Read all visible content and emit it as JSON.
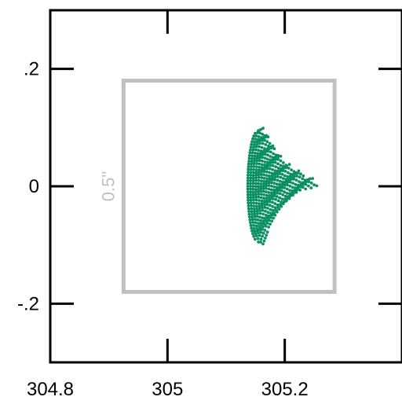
{
  "chart_data": {
    "type": "scatter",
    "title": "",
    "xlabel": "",
    "ylabel": "",
    "xlim": [
      304.8,
      305.4
    ],
    "ylim": [
      -0.3,
      0.3
    ],
    "xticks": [
      {
        "value": 304.8,
        "label": "304.8"
      },
      {
        "value": 305.0,
        "label": "305"
      },
      {
        "value": 305.2,
        "label": "305.2"
      }
    ],
    "yticks": [
      {
        "value": 0.2,
        "label": ".2"
      },
      {
        "value": 0.0,
        "label": "0"
      },
      {
        "value": -0.2,
        "label": "-.2"
      }
    ],
    "grid": false,
    "legend": "none",
    "field_box": {
      "x_range": [
        304.925,
        305.285
      ],
      "y_range": [
        -0.18,
        0.18
      ],
      "label": "0.5\""
    },
    "fan": {
      "apex_x": 305.155,
      "half_height": 0.095,
      "back_bulge": 0.018,
      "tip_x": 305.255,
      "rows": [
        {
          "y": 0.095,
          "right_x": 305.163
        },
        {
          "y": 0.075,
          "right_x": 305.175
        },
        {
          "y": 0.055,
          "right_x": 305.186
        },
        {
          "y": 0.035,
          "right_x": 305.205
        },
        {
          "y": 0.02,
          "right_x": 305.23
        },
        {
          "y": 0.005,
          "right_x": 305.255
        },
        {
          "y": -0.01,
          "right_x": 305.225
        },
        {
          "y": -0.03,
          "right_x": 305.2
        },
        {
          "y": -0.05,
          "right_x": 305.185
        },
        {
          "y": -0.07,
          "right_x": 305.173
        },
        {
          "y": -0.095,
          "right_x": 305.163
        }
      ]
    },
    "colors": {
      "points": "#0a8f62",
      "box": "#c0c0c0",
      "box_label": "#c0c0c0",
      "axes": "#000000",
      "text": "#000000"
    }
  }
}
